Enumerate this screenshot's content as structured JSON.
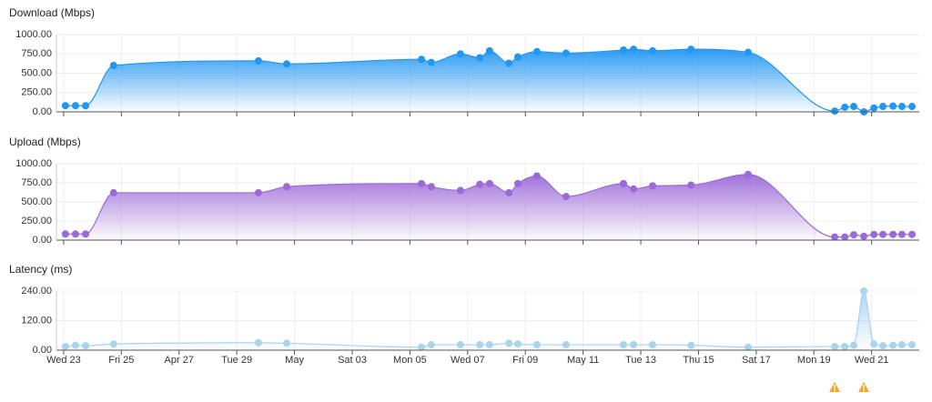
{
  "chart_data": [
    {
      "type": "area",
      "title": "Download (Mbps)",
      "color": "#2196f3",
      "x": [
        0.06,
        0.41,
        0.76,
        1.73,
        6.75,
        7.73,
        12.4,
        12.74,
        13.75,
        14.42,
        14.76,
        15.43,
        15.74,
        16.4,
        17.41,
        19.4,
        19.75,
        20.41,
        21.74,
        23.72,
        26.72,
        27.07,
        27.38,
        27.73,
        28.08,
        28.39,
        28.74,
        29.05,
        29.4
      ],
      "values": [
        80,
        80,
        80,
        600,
        660,
        620,
        680,
        640,
        750,
        700,
        790,
        630,
        710,
        780,
        760,
        800,
        810,
        790,
        810,
        770,
        10,
        60,
        70,
        0,
        50,
        70,
        75,
        70,
        70
      ],
      "ylim": [
        0,
        1000
      ],
      "yticks": [
        {
          "value": 0,
          "label": "0.00"
        },
        {
          "value": 250,
          "label": "250.00"
        },
        {
          "value": 500,
          "label": "500.00"
        },
        {
          "value": 750,
          "label": "750.00"
        },
        {
          "value": 1000,
          "label": "1000.00"
        }
      ],
      "grid": true
    },
    {
      "type": "area",
      "title": "Upload (Mbps)",
      "color": "#9c6ad8",
      "x": [
        0.06,
        0.41,
        0.76,
        1.73,
        6.75,
        7.73,
        12.4,
        12.74,
        13.75,
        14.42,
        14.76,
        15.43,
        15.74,
        16.4,
        17.41,
        19.4,
        19.75,
        20.41,
        21.74,
        23.72,
        26.72,
        27.07,
        27.38,
        27.73,
        28.08,
        28.39,
        28.74,
        29.05,
        29.4
      ],
      "values": [
        80,
        80,
        80,
        620,
        620,
        700,
        740,
        700,
        650,
        730,
        740,
        620,
        740,
        840,
        570,
        740,
        670,
        710,
        720,
        860,
        40,
        40,
        70,
        50,
        75,
        75,
        75,
        75,
        75
      ],
      "ylim": [
        0,
        1000
      ],
      "yticks": [
        {
          "value": 0,
          "label": "0.00"
        },
        {
          "value": 250,
          "label": "250.00"
        },
        {
          "value": 500,
          "label": "500.00"
        },
        {
          "value": 750,
          "label": "750.00"
        },
        {
          "value": 1000,
          "label": "1000.00"
        }
      ],
      "grid": true
    },
    {
      "type": "area",
      "title": "Latency (ms)",
      "color": "#a8d4ee",
      "x": [
        0.06,
        0.41,
        0.76,
        1.73,
        6.75,
        7.73,
        12.4,
        12.74,
        13.75,
        14.42,
        14.76,
        15.43,
        15.74,
        16.4,
        17.41,
        19.4,
        19.75,
        20.41,
        21.74,
        23.72,
        26.72,
        27.07,
        27.38,
        27.73,
        28.08,
        28.39,
        28.74,
        29.05,
        29.4
      ],
      "values": [
        15,
        20,
        18,
        25,
        30,
        28,
        12,
        22,
        22,
        22,
        22,
        28,
        25,
        22,
        22,
        22,
        22,
        22,
        20,
        12,
        15,
        15,
        20,
        240,
        25,
        18,
        20,
        22,
        22
      ],
      "ylim": [
        0,
        240
      ],
      "yticks": [
        {
          "value": 0,
          "label": "0.00"
        },
        {
          "value": 120,
          "label": "120.00"
        },
        {
          "value": 240,
          "label": "240.00"
        }
      ],
      "xlim": [
        -0.25,
        29.65
      ],
      "xticks": [
        {
          "value": 0,
          "label": "Wed 23"
        },
        {
          "value": 2,
          "label": "Fri 25"
        },
        {
          "value": 4,
          "label": "Apr 27"
        },
        {
          "value": 6,
          "label": "Tue 29"
        },
        {
          "value": 8,
          "label": "May"
        },
        {
          "value": 10,
          "label": "Sat 03"
        },
        {
          "value": 12,
          "label": "Mon 05"
        },
        {
          "value": 14,
          "label": "Wed 07"
        },
        {
          "value": 16,
          "label": "Fri 09"
        },
        {
          "value": 18,
          "label": "May 11"
        },
        {
          "value": 20,
          "label": "Tue 13"
        },
        {
          "value": 22,
          "label": "Thu 15"
        },
        {
          "value": 24,
          "label": "Sat 17"
        },
        {
          "value": 26,
          "label": "Mon 19"
        },
        {
          "value": 28,
          "label": "Wed 21"
        }
      ],
      "grid": true
    }
  ]
}
